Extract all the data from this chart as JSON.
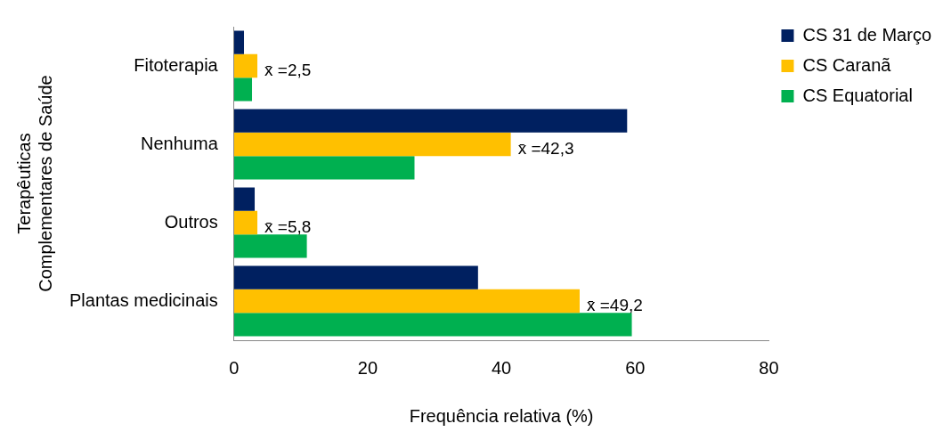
{
  "chart_data": {
    "type": "bar",
    "orientation": "horizontal",
    "xlabel": "Frequência relativa (%)",
    "ylabel": "Terapêuticas Complementares de Saúde",
    "categories": [
      "Fitoterapia",
      "Nenhuma",
      "Outros",
      "Plantas medicinais"
    ],
    "series": [
      {
        "name": "CS 31 de Março",
        "color": "#002060",
        "values": [
          1.5,
          58.8,
          3.1,
          36.5
        ]
      },
      {
        "name": "CS Caranã",
        "color": "#ffc000",
        "values": [
          3.5,
          41.4,
          3.5,
          51.7
        ]
      },
      {
        "name": "CS Equatorial",
        "color": "#00b050",
        "values": [
          2.7,
          27.0,
          10.9,
          59.5
        ]
      }
    ],
    "xlim": [
      0,
      80
    ],
    "xticks": [
      0,
      20,
      40,
      60,
      80
    ],
    "grid": false,
    "legend": "top right",
    "annotations": [
      {
        "text": "x̄ =2,5",
        "x": 3.5,
        "y": "Fitoterapia"
      },
      {
        "text": "x̄ =42,3",
        "x": 41.4,
        "y": "Nenhuma"
      },
      {
        "text": "x̄ =5,8",
        "x": 3.5,
        "y": "Outros"
      },
      {
        "text": "x̄ =49,2",
        "x": 51.7,
        "y": "Plantas medicinais"
      }
    ]
  }
}
